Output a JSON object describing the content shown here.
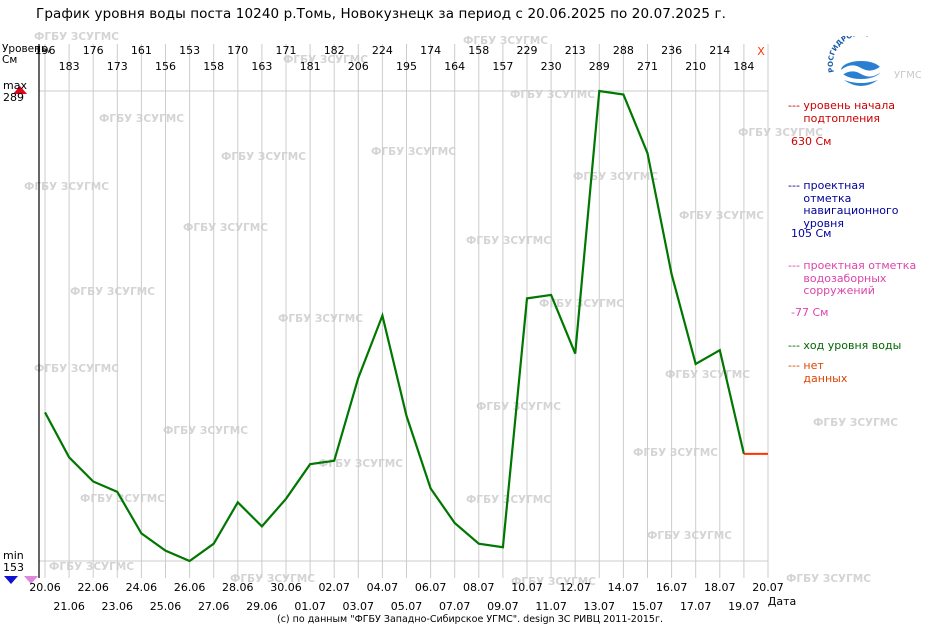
{
  "title": "График уровня воды поста 10240 р.Томь, Новокузнецк за период с 20.06.2025 по 20.07.2025 г.",
  "y_unit": "Уровень, См",
  "y_max_label": "max",
  "y_max_value": "289",
  "y_min_label": "min",
  "y_min_value": "153",
  "x_axis_label": "Дата",
  "no_data_mark": "X",
  "logo": {
    "text": "РОСГИДРОМЕТ",
    "sub": "УГМС"
  },
  "watermark": "ФГБУ ЗСУГМС",
  "footer": "(с) по данным \"ФГБУ Западно-Сибирское УГМС\". design ЗС РИВЦ 2011-2015г.",
  "legend": [
    {
      "marker": "---",
      "text": "уровень начала подтопления",
      "value": "630 См",
      "color": "#cc0000"
    },
    {
      "marker": "---",
      "text": "проектная отметка навигационного уровня",
      "value": "105 См",
      "color": "#000099"
    },
    {
      "marker": "---",
      "text": "проектная отметка водозаборных сорружений",
      "value": "-77 См",
      "color": "#dd44aa"
    },
    {
      "marker": "---",
      "text": "ход уровня воды",
      "value": "",
      "color": "#006600"
    },
    {
      "marker": "---",
      "text": "нет данных",
      "value": "",
      "color": "#dd4400"
    }
  ],
  "colors": {
    "level": "#007700",
    "no_data": "#ff3300",
    "grid": "#cccccc"
  },
  "chart_data": {
    "type": "line",
    "title": "График уровня воды поста 10240 р.Томь, Новокузнецк за период с 20.06.2025 по 20.07.2025 г.",
    "xlabel": "Дата",
    "ylabel": "Уровень, См",
    "ylim": [
      153,
      289
    ],
    "grid": true,
    "dates": [
      "20.06",
      "21.06",
      "22.06",
      "23.06",
      "24.06",
      "25.06",
      "26.06",
      "27.06",
      "28.06",
      "29.06",
      "30.06",
      "01.07",
      "02.07",
      "03.07",
      "04.07",
      "05.07",
      "06.07",
      "07.07",
      "08.07",
      "09.07",
      "10.07",
      "11.07",
      "12.07",
      "13.07",
      "14.07",
      "15.07",
      "16.07",
      "17.07",
      "18.07",
      "19.07",
      "20.07"
    ],
    "series": [
      {
        "values": [
          196,
          183,
          176,
          173,
          161,
          156,
          153,
          158,
          170,
          163,
          171,
          181,
          182,
          206,
          224,
          195,
          174,
          164,
          158,
          157,
          229,
          230,
          213,
          289,
          288,
          271,
          236,
          210,
          214,
          184,
          null
        ]
      }
    ],
    "no_data_segment": [
      "19.07",
      "20.07"
    ]
  }
}
